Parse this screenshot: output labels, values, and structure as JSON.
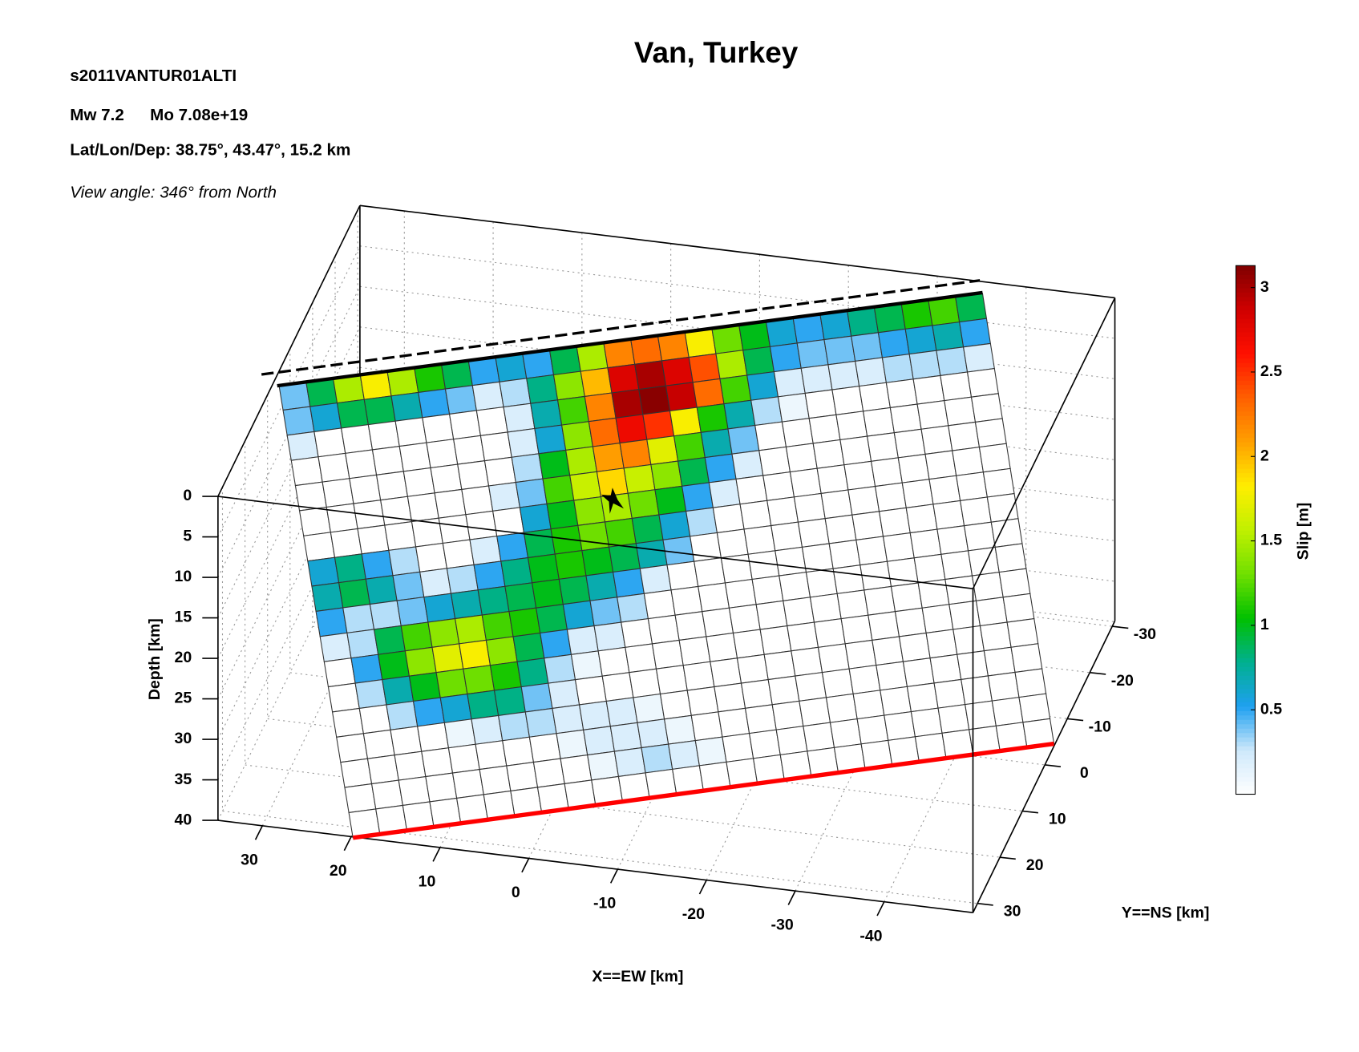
{
  "chart_data": {
    "type": "fault-slip-3d",
    "title": "Van, Turkey",
    "annotations": [
      "s2011VANTUR01ALTI",
      "Mw 7.2",
      "Mo 7.08e+19",
      "Lat/Lon/Dep: 38.75°, 43.47°, 15.2 km",
      "View angle: 346° from North"
    ],
    "xlabel": "X==EW [km]",
    "ylabel": "Y==NS [km]",
    "zlabel": "Depth [km]",
    "colorbar_label": "Slip [m]",
    "xlim": [
      35,
      -50
    ],
    "xticks": [
      30,
      20,
      10,
      0,
      -10,
      -20,
      -30,
      -40
    ],
    "ylim": [
      32,
      -31
    ],
    "yticks": [
      30,
      20,
      10,
      0,
      -10,
      -20,
      -30
    ],
    "zlim": [
      0,
      40
    ],
    "zticks": [
      0,
      5,
      10,
      15,
      20,
      25,
      30,
      35,
      40
    ],
    "clim": [
      0,
      3.13
    ],
    "cticks": [
      0.5,
      1,
      1.5,
      2,
      2.5,
      3
    ],
    "colormap": [
      "#ffffff",
      "#cfe9fb",
      "#1ea0f0",
      "#00b090",
      "#00c000",
      "#70e000",
      "#c0f000",
      "#ffee00",
      "#ffa000",
      "#ff6000",
      "#ff1000",
      "#d00000",
      "#800000"
    ],
    "grid": true,
    "slip": [
      [
        0.4,
        0.9,
        1.5,
        1.8,
        1.5,
        1.1,
        0.9,
        0.5,
        0.6,
        0.5,
        0.9,
        1.5,
        2.2,
        2.3,
        2.2,
        1.8,
        1.3,
        1.0,
        0.6,
        0.5,
        0.6,
        0.8,
        0.9,
        1.1,
        1.2,
        0.9
      ],
      [
        0.4,
        0.6,
        0.9,
        0.9,
        0.7,
        0.5,
        0.4,
        0.2,
        0.3,
        0.8,
        1.4,
        2.0,
        2.8,
        3.0,
        2.8,
        2.4,
        1.5,
        0.9,
        0.5,
        0.4,
        0.4,
        0.4,
        0.5,
        0.6,
        0.7,
        0.5
      ],
      [
        0.2,
        0,
        0,
        0,
        0,
        0,
        0,
        0,
        0.2,
        0.7,
        1.2,
        2.2,
        3.0,
        3.1,
        2.9,
        2.3,
        1.2,
        0.6,
        0.2,
        0.2,
        0.2,
        0.2,
        0.3,
        0.3,
        0.3,
        0.2
      ],
      [
        0,
        0,
        0,
        0,
        0,
        0,
        0,
        0,
        0.2,
        0.6,
        1.4,
        2.3,
        2.7,
        2.5,
        1.8,
        1.1,
        0.7,
        0.3,
        0.1,
        0,
        0,
        0,
        0,
        0,
        0,
        0
      ],
      [
        0,
        0,
        0,
        0,
        0,
        0,
        0,
        0,
        0.3,
        1.0,
        1.5,
        2.1,
        2.2,
        1.7,
        1.2,
        0.7,
        0.4,
        0,
        0,
        0,
        0,
        0,
        0,
        0,
        0,
        0
      ],
      [
        0,
        0,
        0,
        0,
        0,
        0,
        0,
        0.2,
        0.4,
        1.2,
        1.6,
        1.9,
        1.6,
        1.4,
        0.9,
        0.5,
        0.2,
        0,
        0,
        0,
        0,
        0,
        0,
        0,
        0,
        0
      ],
      [
        0,
        0,
        0,
        0,
        0,
        0,
        0,
        0,
        0.6,
        1.0,
        1.4,
        1.5,
        1.3,
        1.0,
        0.5,
        0.2,
        0,
        0,
        0,
        0,
        0,
        0,
        0,
        0,
        0,
        0
      ],
      [
        0.6,
        0.8,
        0.5,
        0.3,
        0,
        0,
        0.2,
        0.5,
        0.9,
        1.1,
        1.3,
        1.2,
        0.9,
        0.6,
        0.3,
        0,
        0,
        0,
        0,
        0,
        0,
        0,
        0,
        0,
        0,
        0
      ],
      [
        0.7,
        0.9,
        0.7,
        0.4,
        0.2,
        0.3,
        0.5,
        0.8,
        1.0,
        1.1,
        1.0,
        0.9,
        0.7,
        0.4,
        0,
        0,
        0,
        0,
        0,
        0,
        0,
        0,
        0,
        0,
        0,
        0
      ],
      [
        0.5,
        0.3,
        0.3,
        0.4,
        0.6,
        0.7,
        0.8,
        0.9,
        1.0,
        0.9,
        0.7,
        0.5,
        0.2,
        0,
        0,
        0,
        0,
        0,
        0,
        0,
        0,
        0,
        0,
        0,
        0,
        0
      ],
      [
        0.2,
        0.3,
        0.9,
        1.2,
        1.4,
        1.5,
        1.2,
        1.1,
        0.9,
        0.6,
        0.4,
        0.3,
        0,
        0,
        0,
        0,
        0,
        0,
        0,
        0,
        0,
        0,
        0,
        0,
        0,
        0
      ],
      [
        0,
        0.5,
        1.0,
        1.4,
        1.7,
        1.8,
        1.4,
        0.9,
        0.5,
        0.2,
        0.2,
        0,
        0,
        0,
        0,
        0,
        0,
        0,
        0,
        0,
        0,
        0,
        0,
        0,
        0,
        0
      ],
      [
        0,
        0.3,
        0.7,
        1.0,
        1.3,
        1.3,
        1.1,
        0.8,
        0.3,
        0.1,
        0,
        0,
        0,
        0,
        0,
        0,
        0,
        0,
        0,
        0,
        0,
        0,
        0,
        0,
        0,
        0
      ],
      [
        0,
        0,
        0.3,
        0.5,
        0.6,
        0.8,
        0.8,
        0.4,
        0.2,
        0,
        0,
        0,
        0,
        0,
        0,
        0,
        0,
        0,
        0,
        0,
        0,
        0,
        0,
        0,
        0,
        0
      ],
      [
        0,
        0,
        0,
        0,
        0.1,
        0.2,
        0.3,
        0.3,
        0.2,
        0.2,
        0.2,
        0.1,
        0,
        0,
        0,
        0,
        0,
        0,
        0,
        0,
        0,
        0,
        0,
        0,
        0,
        0
      ],
      [
        0,
        0,
        0,
        0,
        0,
        0,
        0,
        0,
        0.1,
        0.2,
        0.2,
        0.2,
        0.1,
        0,
        0,
        0,
        0,
        0,
        0,
        0,
        0,
        0,
        0,
        0,
        0,
        0
      ],
      [
        0,
        0,
        0,
        0,
        0,
        0,
        0,
        0,
        0,
        0.1,
        0.2,
        0.3,
        0.2,
        0.1,
        0,
        0,
        0,
        0,
        0,
        0,
        0,
        0,
        0,
        0,
        0,
        0
      ],
      [
        0,
        0,
        0,
        0,
        0,
        0,
        0,
        0,
        0,
        0,
        0,
        0,
        0,
        0,
        0,
        0,
        0,
        0,
        0,
        0,
        0,
        0,
        0,
        0,
        0,
        0
      ]
    ]
  }
}
